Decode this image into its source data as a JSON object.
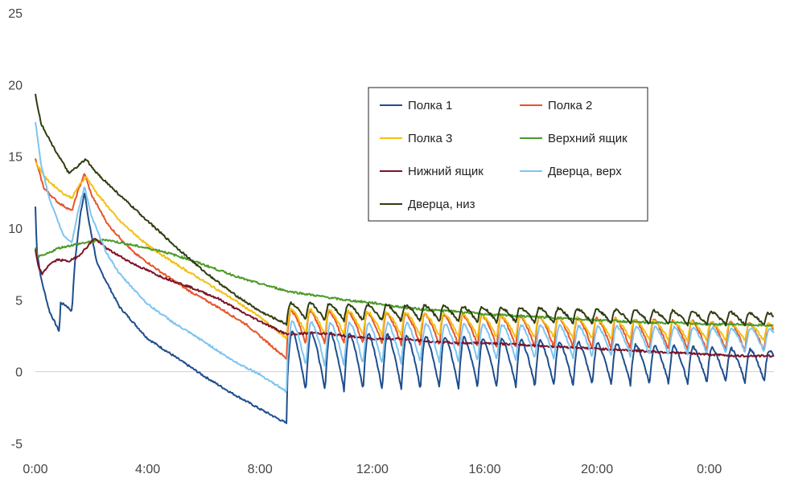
{
  "chart_data": {
    "type": "line",
    "title": "",
    "xlabel": "",
    "ylabel": "",
    "x_unit": "hours",
    "xlim": [
      0,
      26.3
    ],
    "ylim": [
      -5,
      25
    ],
    "grid": false,
    "legend_position": "top-right",
    "x_ticks": [
      {
        "value": 0,
        "label": "0:00"
      },
      {
        "value": 4,
        "label": "4:00"
      },
      {
        "value": 8,
        "label": "8:00"
      },
      {
        "value": 12,
        "label": "12:00"
      },
      {
        "value": 16,
        "label": "16:00"
      },
      {
        "value": 20,
        "label": "20:00"
      },
      {
        "value": 24,
        "label": "0:00"
      }
    ],
    "y_ticks": [
      {
        "value": -5,
        "label": "-5"
      },
      {
        "value": 0,
        "label": "0"
      },
      {
        "value": 5,
        "label": "5"
      },
      {
        "value": 10,
        "label": "10"
      },
      {
        "value": 15,
        "label": "15"
      },
      {
        "value": 20,
        "label": "20"
      },
      {
        "value": 25,
        "label": "25"
      }
    ],
    "series": [
      {
        "name": "Полка 1",
        "color": "#1f4e8c",
        "points": [
          [
            0,
            11.5
          ],
          [
            0.05,
            8.5
          ],
          [
            0.2,
            6.5
          ],
          [
            0.5,
            4.2
          ],
          [
            0.85,
            2.8
          ],
          [
            0.9,
            4.8
          ],
          [
            1.1,
            4.6
          ],
          [
            1.3,
            4.2
          ],
          [
            1.4,
            7.5
          ],
          [
            1.6,
            11
          ],
          [
            1.75,
            12.5
          ],
          [
            1.9,
            10.5
          ],
          [
            2.2,
            7.5
          ],
          [
            3,
            4.5
          ],
          [
            4,
            2.3
          ],
          [
            5,
            1
          ],
          [
            6,
            -0.3
          ],
          [
            7,
            -1.5
          ],
          [
            8,
            -2.6
          ],
          [
            8.95,
            -3.6
          ]
        ],
        "cycle": {
          "start": 8.95,
          "period": 0.68,
          "top": [
            2.9,
            1.5
          ],
          "bottom": [
            -1.4,
            -0.7
          ],
          "rise": 0.28
        }
      },
      {
        "name": "Полка 2",
        "color": "#e8542a",
        "points": [
          [
            0,
            14.8
          ],
          [
            0.3,
            12.8
          ],
          [
            0.8,
            11.8
          ],
          [
            1.3,
            11.2
          ],
          [
            1.5,
            12.5
          ],
          [
            1.75,
            13.8
          ],
          [
            2,
            12.3
          ],
          [
            2.6,
            10.2
          ],
          [
            3.5,
            8.3
          ],
          [
            4.5,
            6.9
          ],
          [
            5.5,
            5.6
          ],
          [
            6.5,
            4.5
          ],
          [
            7.5,
            3.3
          ],
          [
            8.95,
            0.9
          ]
        ],
        "cycle": {
          "start": 8.95,
          "period": 0.68,
          "top": [
            4.3,
            3.4
          ],
          "bottom": [
            2.0,
            1.4
          ],
          "rise": 0.22
        }
      },
      {
        "name": "Полка 3",
        "color": "#f4c014",
        "points": [
          [
            0,
            14.6
          ],
          [
            0.4,
            13.4
          ],
          [
            1,
            12.4
          ],
          [
            1.3,
            12.1
          ],
          [
            1.5,
            12.8
          ],
          [
            1.8,
            13.6
          ],
          [
            2.2,
            12.4
          ],
          [
            3,
            10.5
          ],
          [
            4,
            8.8
          ],
          [
            5,
            7.5
          ],
          [
            6,
            6.3
          ],
          [
            7,
            5.1
          ],
          [
            8,
            3.8
          ],
          [
            8.95,
            2.3
          ]
        ],
        "cycle": {
          "start": 8.95,
          "period": 0.68,
          "top": [
            4.4,
            3.3
          ],
          "bottom": [
            2.6,
            2.1
          ],
          "rise": 0.22
        }
      },
      {
        "name": "Верхний ящик",
        "color": "#4c9a2a",
        "points": [
          [
            0,
            8.6
          ],
          [
            0.1,
            8
          ],
          [
            0.3,
            8.1
          ],
          [
            0.8,
            8.6
          ],
          [
            1.5,
            8.9
          ],
          [
            2.5,
            9.2
          ],
          [
            3.5,
            8.8
          ],
          [
            4.5,
            8.4
          ],
          [
            5.5,
            7.8
          ],
          [
            6.5,
            7.1
          ],
          [
            7.5,
            6.4
          ],
          [
            9,
            5.6
          ],
          [
            10,
            5.3
          ],
          [
            11,
            5
          ],
          [
            12,
            4.8
          ],
          [
            13,
            4.5
          ],
          [
            14,
            4.3
          ],
          [
            15,
            4.2
          ],
          [
            16,
            4
          ],
          [
            17,
            3.9
          ],
          [
            18,
            3.8
          ],
          [
            19,
            3.7
          ],
          [
            20,
            3.6
          ],
          [
            21,
            3.5
          ],
          [
            22,
            3.4
          ],
          [
            23,
            3.4
          ],
          [
            24,
            3.3
          ],
          [
            25,
            3.3
          ],
          [
            26.3,
            3.2
          ]
        ]
      },
      {
        "name": "Нижний ящик",
        "color": "#7b1428",
        "points": [
          [
            0,
            8.5
          ],
          [
            0.1,
            7.3
          ],
          [
            0.25,
            6.8
          ],
          [
            0.5,
            7.5
          ],
          [
            0.8,
            7.8
          ],
          [
            1.2,
            7.7
          ],
          [
            1.5,
            8
          ],
          [
            1.8,
            8.6
          ],
          [
            2.1,
            9.3
          ],
          [
            2.6,
            8.5
          ],
          [
            3.5,
            7.5
          ],
          [
            4.5,
            6.6
          ],
          [
            5.5,
            5.9
          ],
          [
            6.5,
            5.1
          ],
          [
            7.5,
            4
          ],
          [
            8.95,
            2.6
          ],
          [
            10,
            2.7
          ],
          [
            11,
            2.5
          ],
          [
            12,
            2.3
          ],
          [
            13,
            2.3
          ],
          [
            14,
            2.1
          ],
          [
            15,
            2
          ],
          [
            16,
            2
          ],
          [
            17,
            1.9
          ],
          [
            18,
            1.8
          ],
          [
            19,
            1.7
          ],
          [
            20,
            1.6
          ],
          [
            21,
            1.5
          ],
          [
            22,
            1.4
          ],
          [
            23,
            1.3
          ],
          [
            24,
            1.2
          ],
          [
            25,
            1.1
          ],
          [
            26.3,
            1.1
          ]
        ]
      },
      {
        "name": "Дверца, верх",
        "color": "#7ec4ef",
        "points": [
          [
            0,
            17.4
          ],
          [
            0.2,
            14.5
          ],
          [
            0.5,
            12
          ],
          [
            1,
            9.5
          ],
          [
            1.3,
            9
          ],
          [
            1.5,
            11
          ],
          [
            1.75,
            12.9
          ],
          [
            2,
            10.8
          ],
          [
            2.5,
            8.4
          ],
          [
            3,
            6.8
          ],
          [
            4,
            4.7
          ],
          [
            5,
            3.3
          ],
          [
            6,
            2.1
          ],
          [
            7,
            0.8
          ],
          [
            8,
            -0.2
          ],
          [
            8.95,
            -1.4
          ]
        ],
        "cycle": {
          "start": 8.95,
          "period": 0.68,
          "top": [
            3.5,
            3.0
          ],
          "bottom": [
            0.3,
            1.4
          ],
          "rise": 0.3
        }
      },
      {
        "name": "Дверца, низ",
        "color": "#2f3d10",
        "points": [
          [
            0,
            19.3
          ],
          [
            0.2,
            17.3
          ],
          [
            0.6,
            15.8
          ],
          [
            1.2,
            13.8
          ],
          [
            1.5,
            14.3
          ],
          [
            1.8,
            14.8
          ],
          [
            2.1,
            14
          ],
          [
            3,
            12.3
          ],
          [
            4,
            10.5
          ],
          [
            5,
            8.7
          ],
          [
            6,
            7
          ],
          [
            7,
            5.5
          ],
          [
            8,
            4.2
          ],
          [
            8.95,
            3.3
          ]
        ],
        "cycle": {
          "start": 8.95,
          "period": 0.68,
          "top": [
            4.8,
            4.1
          ],
          "bottom": [
            3.6,
            3.2
          ],
          "rise": 0.22
        }
      }
    ]
  }
}
